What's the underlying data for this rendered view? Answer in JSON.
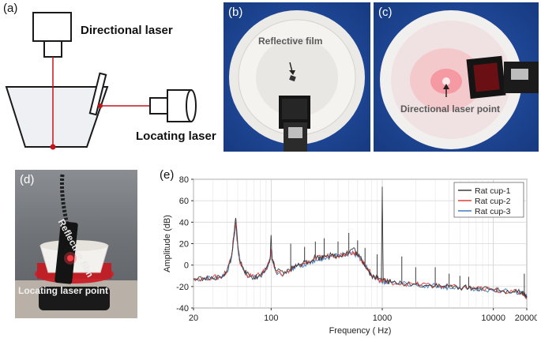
{
  "panels": {
    "a": {
      "label": "(a)",
      "directional_laser": "Directional laser",
      "locating_laser": "Locating laser",
      "colors": {
        "laser_beam": "#c0161b",
        "cup_fill": "#eef0f4",
        "stroke": "#1a1a1a"
      }
    },
    "b": {
      "label": "(b)",
      "annotation": "Reflective film"
    },
    "c": {
      "label": "(c)",
      "annotation": "Directional laser point"
    },
    "d": {
      "label": "(d)",
      "annotation_film": "Reflective film",
      "annotation_point": "Locating laser point"
    },
    "e": {
      "label": "(e)"
    }
  },
  "chart_data": {
    "type": "line",
    "title": "",
    "xlabel": "Frequency ( Hz)",
    "ylabel": "Amplitude (dB)",
    "xscale": "log",
    "xlim": [
      20,
      20000
    ],
    "ylim": [
      -40,
      80
    ],
    "xticks": [
      20,
      100,
      1000,
      10000,
      20000
    ],
    "xtick_labels": [
      "20",
      "100",
      "1000",
      "10000",
      "20000"
    ],
    "yticks": [
      -40,
      -20,
      0,
      20,
      40,
      60,
      80
    ],
    "ytick_labels": [
      "-40",
      "-20",
      "0",
      "20",
      "40",
      "60",
      "80"
    ],
    "grid": true,
    "legend_position": "top-right",
    "series": [
      {
        "name": "Rat cup-1",
        "color": "#3c3c3c",
        "x": [
          20,
          25,
          30,
          35,
          40,
          44,
          46,
          48,
          50,
          52,
          55,
          60,
          70,
          80,
          90,
          98,
          100,
          102,
          110,
          130,
          150,
          160,
          180,
          200,
          230,
          250,
          280,
          300,
          350,
          400,
          450,
          500,
          550,
          600,
          650,
          700,
          750,
          800,
          900,
          980,
          1000,
          1020,
          1100,
          1200,
          1500,
          2000,
          2500,
          3000,
          3500,
          4000,
          5000,
          6000,
          7000,
          8000,
          10000,
          12000,
          15000,
          18000,
          19000,
          20000
        ],
        "y": [
          -13,
          -12,
          -13,
          -11,
          -6,
          8,
          26,
          44,
          20,
          5,
          -1,
          -8,
          -12,
          -10,
          -3,
          7,
          28,
          6,
          -5,
          -8,
          -4,
          -1,
          0,
          3,
          4,
          8,
          6,
          10,
          9,
          8,
          11,
          12,
          16,
          9,
          6,
          0,
          -5,
          -10,
          -12,
          -14,
          73,
          -14,
          -15,
          -16,
          -17,
          -18,
          -19,
          -19,
          -20,
          -20,
          -21,
          -21,
          -22,
          -22,
          -23,
          -24,
          -25,
          -25,
          -27,
          -30
        ]
      },
      {
        "name": "Rat cup-2",
        "color": "#e0413a",
        "x": [
          20,
          25,
          30,
          35,
          40,
          44,
          46,
          48,
          50,
          52,
          55,
          60,
          70,
          80,
          90,
          98,
          100,
          102,
          110,
          130,
          150,
          160,
          180,
          200,
          230,
          250,
          280,
          300,
          350,
          400,
          450,
          500,
          550,
          600,
          650,
          700,
          750,
          800,
          900,
          980,
          1000,
          1020,
          1100,
          1200,
          1500,
          2000,
          2500,
          3000,
          3500,
          4000,
          5000,
          6000,
          7000,
          8000,
          10000,
          12000,
          15000,
          18000,
          19000,
          20000
        ],
        "y": [
          -12,
          -13,
          -11,
          -12,
          -5,
          9,
          25,
          40,
          18,
          4,
          -2,
          -9,
          -11,
          -9,
          -4,
          6,
          15,
          5,
          -6,
          -8,
          -5,
          -2,
          0,
          2,
          4,
          6,
          7,
          8,
          9,
          9,
          10,
          12,
          12,
          9,
          5,
          0,
          -4,
          -9,
          -13,
          -14,
          -14,
          -14,
          -15,
          -16,
          -17,
          -18,
          -18,
          -19,
          -20,
          -20,
          -21,
          -21,
          -22,
          -22,
          -23,
          -24,
          -25,
          -26,
          -27,
          -30
        ]
      },
      {
        "name": "Rat cup-3",
        "color": "#3d7fc4",
        "x": [
          20,
          25,
          30,
          35,
          40,
          44,
          46,
          48,
          50,
          52,
          55,
          60,
          70,
          80,
          90,
          98,
          100,
          102,
          110,
          130,
          150,
          160,
          180,
          200,
          230,
          250,
          280,
          300,
          350,
          400,
          450,
          500,
          550,
          600,
          650,
          700,
          750,
          800,
          900,
          980,
          1000,
          1020,
          1100,
          1200,
          1500,
          2000,
          2500,
          3000,
          3500,
          4000,
          5000,
          6000,
          7000,
          8000,
          10000,
          12000,
          15000,
          18000,
          19000,
          20000
        ],
        "y": [
          -14,
          -12,
          -12,
          -11,
          -7,
          7,
          23,
          38,
          17,
          4,
          -2,
          -8,
          -12,
          -10,
          -4,
          5,
          14,
          5,
          -6,
          -9,
          -5,
          -2,
          -1,
          1,
          3,
          5,
          6,
          7,
          8,
          9,
          10,
          11,
          11,
          8,
          4,
          -1,
          -5,
          -10,
          -13,
          -15,
          -15,
          -15,
          -16,
          -16,
          -17,
          -18,
          -19,
          -19,
          -20,
          -21,
          -21,
          -22,
          -22,
          -23,
          -24,
          -24,
          -25,
          -26,
          -27,
          -30
        ]
      }
    ],
    "spikes": [
      {
        "x": 150,
        "y": 20
      },
      {
        "x": 200,
        "y": 17
      },
      {
        "x": 250,
        "y": 22
      },
      {
        "x": 300,
        "y": 25
      },
      {
        "x": 400,
        "y": 22
      },
      {
        "x": 500,
        "y": 30
      },
      {
        "x": 600,
        "y": 23
      },
      {
        "x": 700,
        "y": 16
      },
      {
        "x": 900,
        "y": 10
      },
      {
        "x": 1500,
        "y": 8
      },
      {
        "x": 2000,
        "y": -2
      },
      {
        "x": 3000,
        "y": -2
      },
      {
        "x": 4000,
        "y": -8
      },
      {
        "x": 5000,
        "y": -10
      },
      {
        "x": 6000,
        "y": -11
      },
      {
        "x": 19000,
        "y": -8
      }
    ]
  }
}
